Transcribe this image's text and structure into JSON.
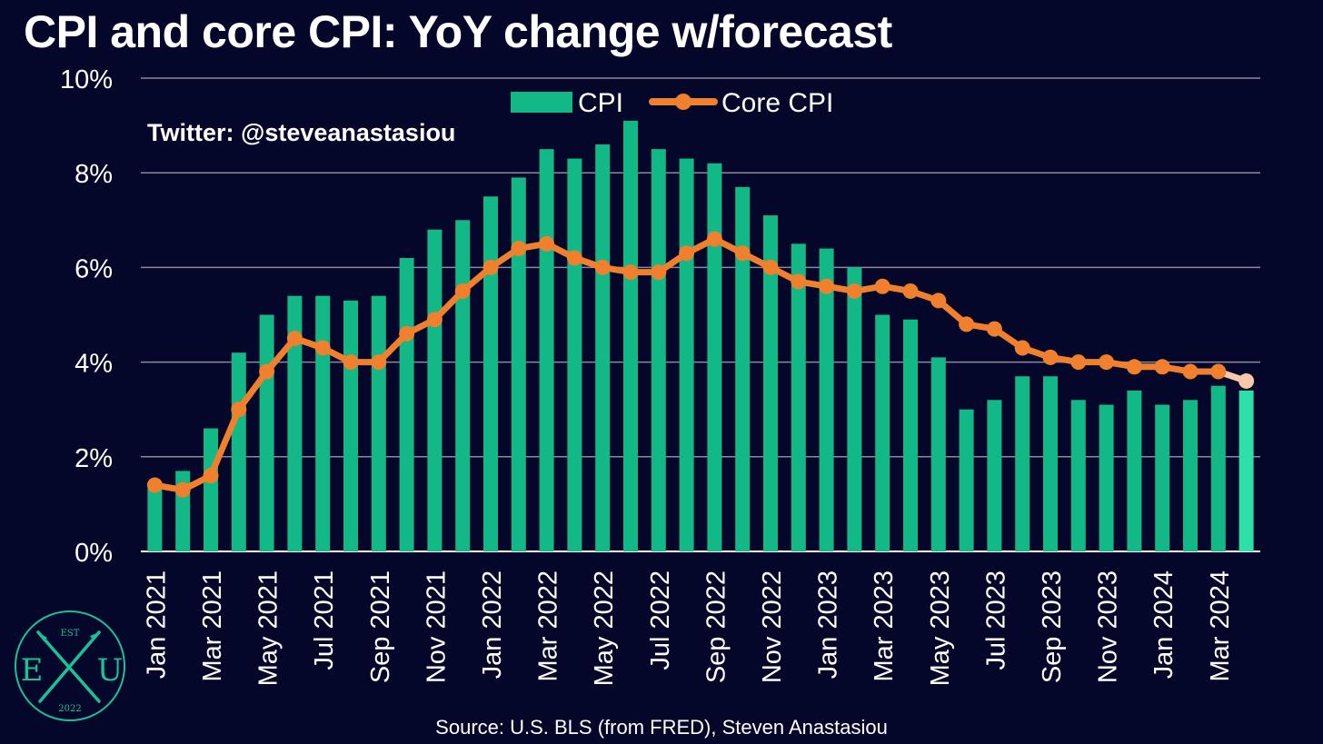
{
  "title": "CPI and core CPI: YoY change w/forecast",
  "watermark": "Twitter: @steveanastasiou",
  "source": "Source: U.S. BLS (from FRED), Steven Anastasiou",
  "logo": {
    "top": "EST",
    "left": "E",
    "right": "U",
    "bottom": "2022"
  },
  "colors": {
    "background": "#04062a",
    "cpi": "#12b886",
    "cpi_forecast": "#2de0a8",
    "core_cpi": "#f07f2e",
    "core_cpi_forecast": "#f8c8a8",
    "grid": "#8a8a9c",
    "logo": "#19c39a"
  },
  "chart_data": {
    "type": "bar",
    "title": "CPI and core CPI: YoY change w/forecast",
    "xlabel": "",
    "ylabel": "",
    "ylim": [
      0,
      10
    ],
    "y_ticks": [
      0,
      2,
      4,
      6,
      8,
      10
    ],
    "y_tick_labels": [
      "0%",
      "2%",
      "4%",
      "6%",
      "8%",
      "10%"
    ],
    "grid": true,
    "legend": "top-center",
    "categories": [
      "Jan 2021",
      "Feb 2021",
      "Mar 2021",
      "Apr 2021",
      "May 2021",
      "Jun 2021",
      "Jul 2021",
      "Aug 2021",
      "Sep 2021",
      "Oct 2021",
      "Nov 2021",
      "Dec 2021",
      "Jan 2022",
      "Feb 2022",
      "Mar 2022",
      "Apr 2022",
      "May 2022",
      "Jun 2022",
      "Jul 2022",
      "Aug 2022",
      "Sep 2022",
      "Oct 2022",
      "Nov 2022",
      "Dec 2022",
      "Jan 2023",
      "Feb 2023",
      "Mar 2023",
      "Apr 2023",
      "May 2023",
      "Jun 2023",
      "Jul 2023",
      "Aug 2023",
      "Sep 2023",
      "Oct 2023",
      "Nov 2023",
      "Dec 2023",
      "Jan 2024",
      "Feb 2024",
      "Mar 2024",
      "Apr 2024"
    ],
    "x_tick_labels": [
      "Jan 2021",
      "Mar 2021",
      "May 2021",
      "Jul 2021",
      "Sep 2021",
      "Nov 2021",
      "Jan 2022",
      "Mar 2022",
      "May 2022",
      "Jul 2022",
      "Sep 2022",
      "Nov 2022",
      "Jan 2023",
      "Mar 2023",
      "May 2023",
      "Jul 2023",
      "Sep 2023",
      "Nov 2023",
      "Jan 2024",
      "Mar 2024"
    ],
    "forecast_from": "Apr 2024",
    "series": [
      {
        "name": "CPI",
        "type": "bar",
        "values": [
          1.4,
          1.7,
          2.6,
          4.2,
          5.0,
          5.4,
          5.4,
          5.3,
          5.4,
          6.2,
          6.8,
          7.0,
          7.5,
          7.9,
          8.5,
          8.3,
          8.6,
          9.1,
          8.5,
          8.3,
          8.2,
          7.7,
          7.1,
          6.5,
          6.4,
          6.0,
          5.0,
          4.9,
          4.1,
          3.0,
          3.2,
          3.7,
          3.7,
          3.2,
          3.1,
          3.4,
          3.1,
          3.2,
          3.5,
          3.4
        ]
      },
      {
        "name": "Core CPI",
        "type": "line",
        "values": [
          1.4,
          1.3,
          1.6,
          3.0,
          3.8,
          4.5,
          4.3,
          4.0,
          4.0,
          4.6,
          4.9,
          5.5,
          6.0,
          6.4,
          6.5,
          6.2,
          6.0,
          5.9,
          5.9,
          6.3,
          6.6,
          6.3,
          6.0,
          5.7,
          5.6,
          5.5,
          5.6,
          5.5,
          5.3,
          4.8,
          4.7,
          4.3,
          4.1,
          4.0,
          4.0,
          3.9,
          3.9,
          3.8,
          3.8,
          3.6
        ]
      }
    ]
  }
}
